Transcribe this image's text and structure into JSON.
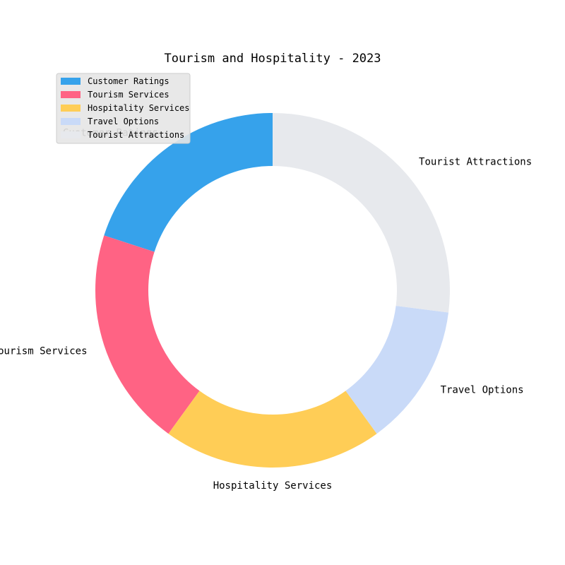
{
  "chart_data": {
    "type": "pie",
    "variant": "donut",
    "title": "Tourism and Hospitality - 2023",
    "legend_position": "top-left",
    "slices": [
      {
        "label": "Customer Ratings",
        "value": 20,
        "color": "#36a2eb"
      },
      {
        "label": "Tourism Services",
        "value": 20,
        "color": "#ff6384"
      },
      {
        "label": "Hospitality Services",
        "value": 20,
        "color": "#ffcd56"
      },
      {
        "label": "Travel Options",
        "value": 13,
        "color": "#c9daf8"
      },
      {
        "label": "Tourist Attractions",
        "value": 27,
        "color": "#e7e9ed"
      }
    ]
  }
}
